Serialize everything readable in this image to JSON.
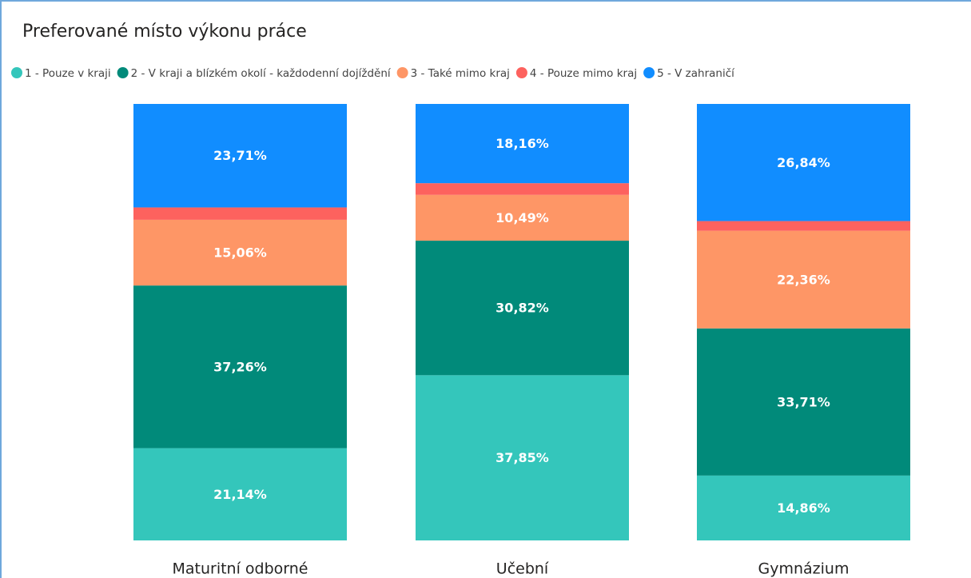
{
  "chart_data": {
    "type": "stacked_bar_100",
    "title": "Preferované místo výkonu práce",
    "categories": [
      "Maturitní odborné",
      "Učební",
      "Gymnázium"
    ],
    "ylim": [
      0,
      100
    ],
    "series": [
      {
        "name": "1 - Pouze v kraji",
        "color": "#34c6bb",
        "values": [
          21.14,
          37.85,
          14.86
        ],
        "value_labels": [
          "21,14%",
          "37,85%",
          "14,86%"
        ]
      },
      {
        "name": "2 - V kraji a blízkém okolí - každodenní dojíždění",
        "color": "#018a7a",
        "values": [
          37.26,
          30.82,
          33.71
        ],
        "value_labels": [
          "37,26%",
          "30,82%",
          "33,71%"
        ]
      },
      {
        "name": "3 - Také mimo kraj",
        "color": "#fe9666",
        "values": [
          15.06,
          10.49,
          22.36
        ],
        "value_labels": [
          "15,06%",
          "10,49%",
          "22,36%"
        ]
      },
      {
        "name": "4 - Pouze mimo kraj",
        "color": "#fd625e",
        "values": [
          2.83,
          2.68,
          2.23
        ]
      },
      {
        "name": "5 - V zahraničí",
        "color": "#118dff",
        "values": [
          23.71,
          18.16,
          26.84
        ],
        "value_labels": [
          "23,71%",
          "18,16%",
          "26,84%"
        ]
      }
    ]
  }
}
